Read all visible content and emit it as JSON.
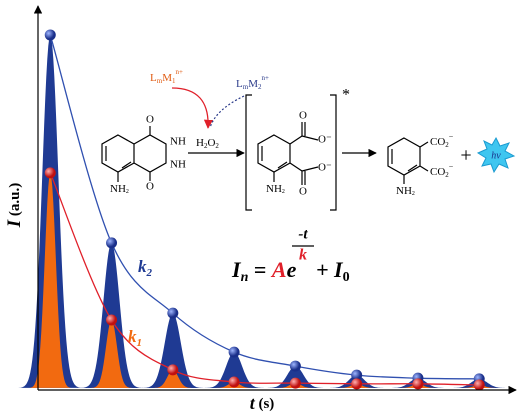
{
  "chart_data": {
    "type": "peaks",
    "x_label": [
      "t",
      " (s)"
    ],
    "y_label": [
      "I",
      " (a.u.)"
    ],
    "x": [
      0.2,
      1.2,
      2.2,
      3.2,
      4.2,
      5.2,
      6.2,
      7.2
    ],
    "xlim": [
      0,
      7.8
    ],
    "ylim": [
      0,
      100
    ],
    "series": [
      {
        "label": [
          "k",
          "2"
        ],
        "color": "#1f3a93",
        "values": [
          93.4,
          38.4,
          19.8,
          9.5,
          5.8,
          3.4,
          2.6,
          2.4
        ]
      },
      {
        "label": [
          "k",
          "1"
        ],
        "color": "#f26a10",
        "values": [
          56.9,
          18.0,
          4.8,
          1.6,
          1.3,
          1.1,
          1.1,
          0.8
        ]
      }
    ],
    "equation": [
      "I",
      "n",
      " = ",
      "A",
      "e",
      "-t",
      "k",
      " + I",
      "0"
    ],
    "reaction": {
      "oxidant_1": [
        "L",
        "m",
        "M",
        "1",
        "n+"
      ],
      "oxidant_2": [
        "L",
        "m",
        "M",
        "2",
        "n+"
      ],
      "h2o2": [
        "H",
        "2",
        "O",
        "2"
      ],
      "luminol_nh2": [
        "NH",
        "2"
      ],
      "luminol_o": [
        "O",
        "O"
      ],
      "luminol_nh": [
        "NH",
        "NH"
      ],
      "excited_o": [
        "O",
        "O"
      ],
      "excited_ominus": [
        "O⁻",
        "O⁻"
      ],
      "excited_star": "*",
      "excited_nh2": [
        "NH",
        "2"
      ],
      "product_co2": [
        "CO",
        "2",
        "−",
        "CO",
        "2",
        "−"
      ],
      "product_nh2": [
        "NH",
        "2"
      ],
      "plus": "+",
      "photon": "hv"
    }
  }
}
